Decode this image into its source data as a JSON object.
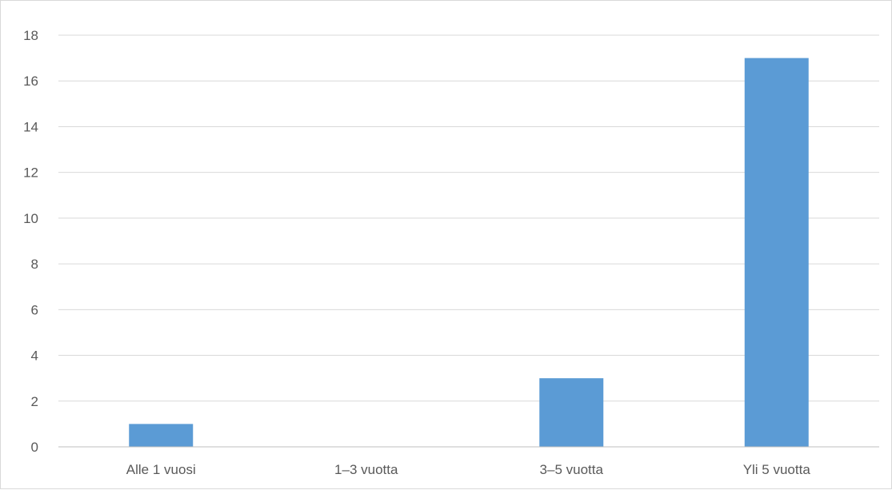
{
  "chart_data": {
    "type": "bar",
    "categories": [
      "Alle 1 vuosi",
      "1–3 vuotta",
      "3–5 vuotta",
      "Yli 5 vuotta"
    ],
    "values": [
      1,
      0,
      3,
      17
    ],
    "title": "",
    "xlabel": "",
    "ylabel": "",
    "ylim": [
      0,
      18
    ],
    "yticks": [
      0,
      2,
      4,
      6,
      8,
      10,
      12,
      14,
      16,
      18
    ],
    "grid": true,
    "legend": "none",
    "bar_color": "#5b9bd5"
  }
}
